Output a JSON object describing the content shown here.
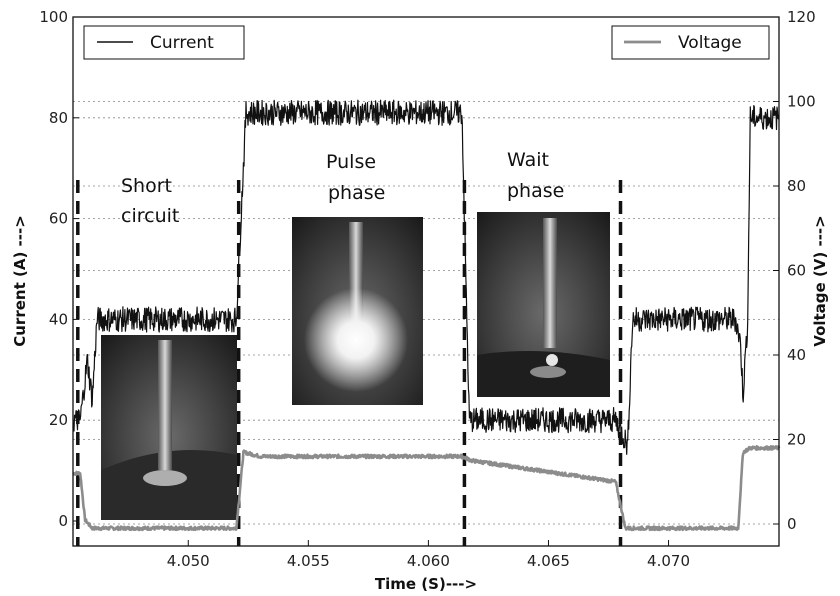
{
  "chart_data": {
    "type": "line",
    "xlabel": "Time (S)--->",
    "ylabel_left": "Current (A) --->",
    "ylabel_right": "Voltage (V) --->",
    "xlim": [
      4.0452,
      4.0746
    ],
    "ylim_left": [
      0,
      100
    ],
    "ylim_right": [
      0,
      120
    ],
    "xticks": [
      "4.050",
      "4.055",
      "4.060",
      "4.065",
      "4.070"
    ],
    "yticks_left": [
      "0",
      "20",
      "40",
      "60",
      "80",
      "100"
    ],
    "yticks_right": [
      "0",
      "20",
      "40",
      "60",
      "80",
      "100",
      "120"
    ],
    "grid": "dotted horizontal",
    "legend": [
      {
        "label": "Current",
        "placement": "top-left",
        "color": "#111111"
      },
      {
        "label": "Voltage",
        "placement": "top-right",
        "color": "#8c8c8c"
      }
    ],
    "series": [
      {
        "name": "Current",
        "axis": "left",
        "color": "#111111",
        "noise": 2.5,
        "x": [
          4.0452,
          4.0455,
          4.0458,
          4.046,
          4.0462,
          4.052,
          4.0524,
          4.0614,
          4.0617,
          4.0678,
          4.0683,
          4.0685,
          4.0728,
          4.073,
          4.0731,
          4.0733,
          4.0734,
          4.0746
        ],
        "y": [
          20,
          20,
          32,
          24,
          40,
          40,
          81,
          81,
          20,
          20,
          15,
          40,
          40,
          35,
          25,
          40,
          80,
          80
        ]
      },
      {
        "name": "Voltage",
        "axis": "right",
        "color": "#8c8c8c",
        "noise": 0.4,
        "x": [
          4.0452,
          4.0455,
          4.0457,
          4.046,
          4.052,
          4.0523,
          4.053,
          4.0614,
          4.0618,
          4.0678,
          4.0682,
          4.0729,
          4.0731,
          4.0734,
          4.0746
        ],
        "y": [
          12,
          12,
          1,
          -1,
          -1,
          17,
          16,
          16,
          15,
          10,
          -1,
          -1,
          17,
          18,
          18
        ]
      }
    ],
    "phase_lines_x": [
      4.0454,
      4.0521,
      4.0615,
      4.068
    ],
    "annotations": [
      {
        "lines": [
          "Short",
          "circuit"
        ]
      },
      {
        "lines": [
          "Pulse",
          "phase"
        ]
      },
      {
        "lines": [
          "Wait",
          "phase"
        ]
      }
    ]
  }
}
